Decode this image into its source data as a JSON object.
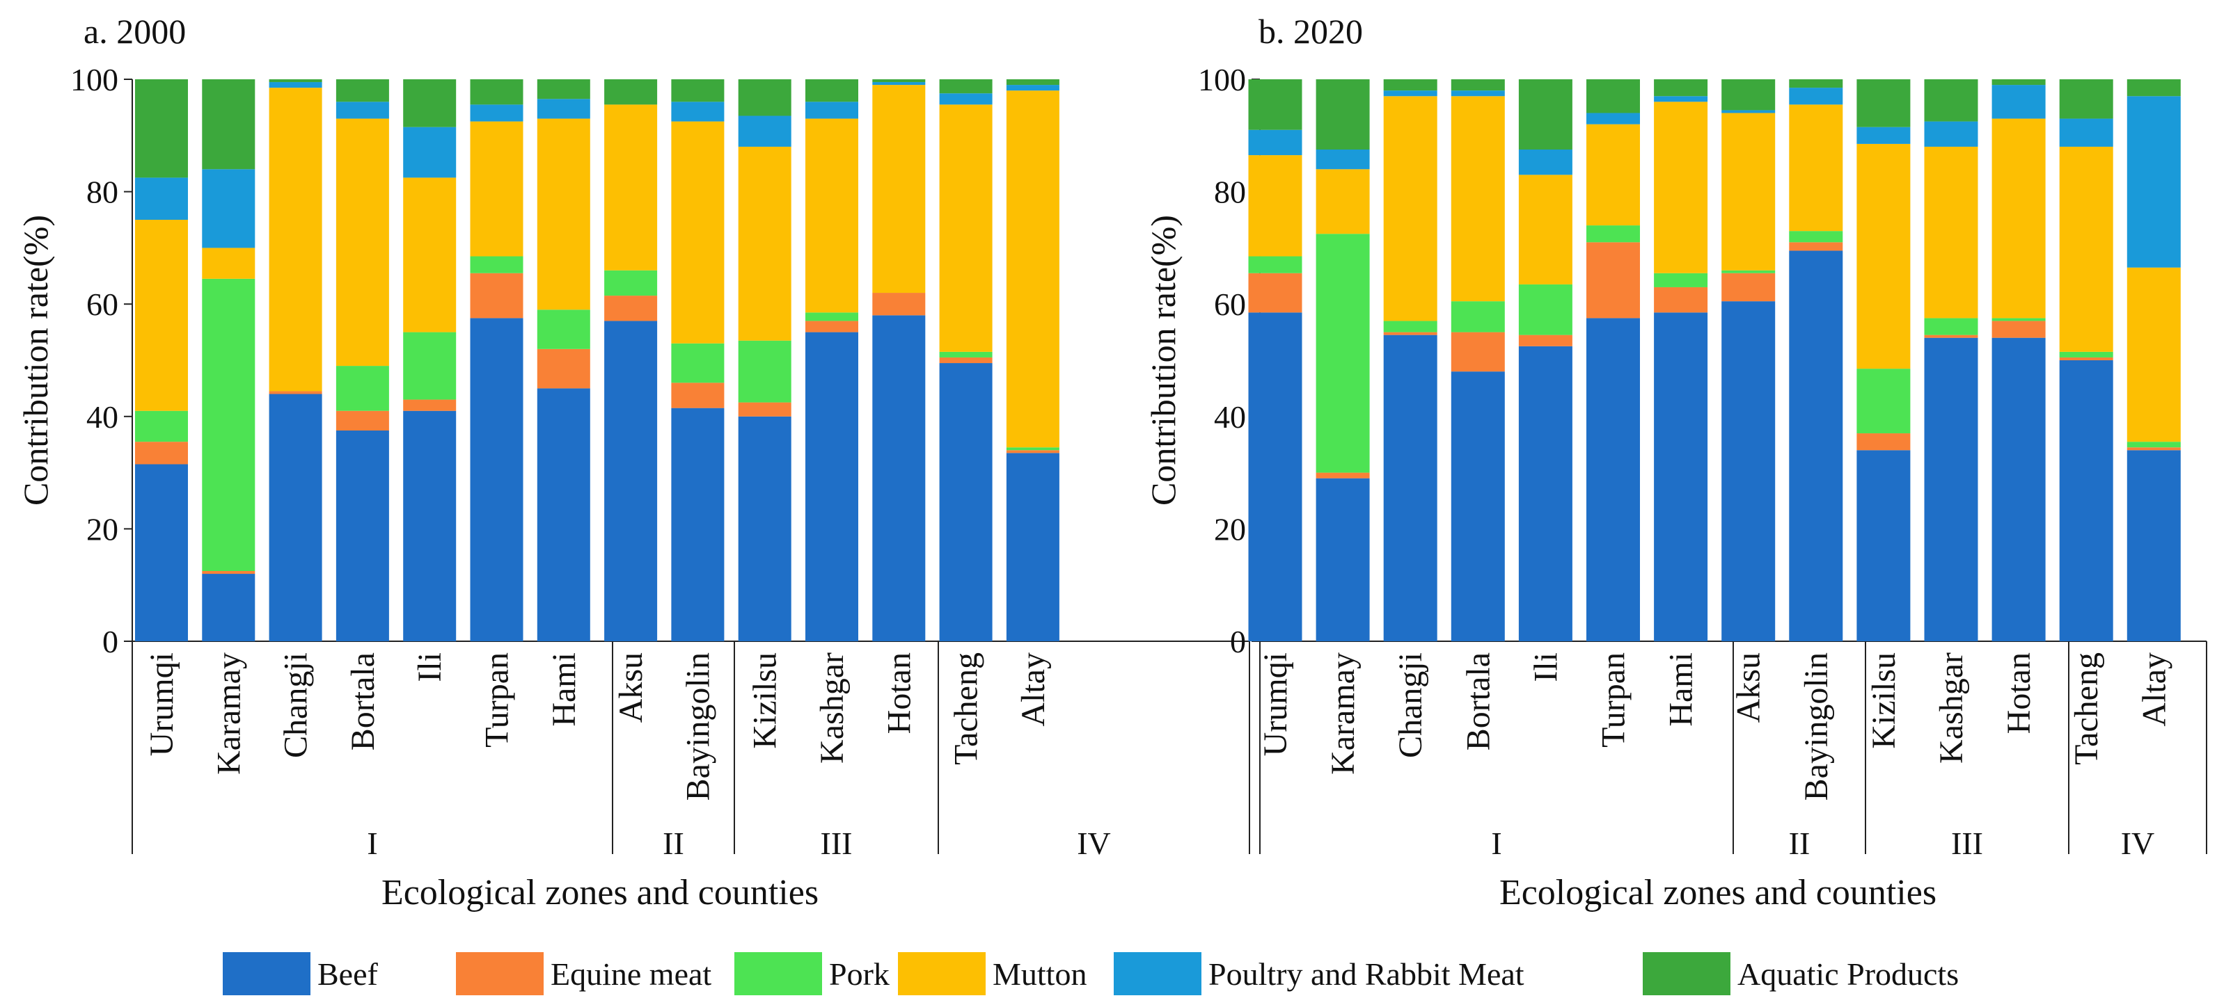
{
  "colors": {
    "Beef": "#1f6fc7",
    "Equine meat": "#f98136",
    "Pork": "#4de353",
    "Mutton": "#fdbf02",
    "Poultry and Rabbit Meat": "#1a9ad9",
    "Aquatic Products": "#3ca83c"
  },
  "legend": [
    "Beef",
    "Equine meat",
    "Pork",
    "Mutton",
    "Poultry and Rabbit Meat",
    "Aquatic Products"
  ],
  "chart_data": [
    {
      "type": "bar",
      "stacked": true,
      "title": "a. 2000",
      "xlabel": "Ecological zones and counties",
      "ylabel": "Contribution rate(%)",
      "ylim": [
        0,
        100
      ],
      "yticks": [
        "0",
        "20",
        "40",
        "60",
        "80",
        "100"
      ],
      "categories": [
        "Urumqi",
        "Karamay",
        "Changji",
        "Bortala",
        "Ili",
        "Turpan",
        "Hami",
        "Aksu",
        "Bayingolin",
        "Kizilsu",
        "Kashgar",
        "Hotan",
        "Tacheng",
        "Altay"
      ],
      "zones": [
        {
          "label": "I",
          "start": 0,
          "end": 6
        },
        {
          "label": "II",
          "start": 7,
          "end": 8
        },
        {
          "label": "III",
          "start": 9,
          "end": 11
        },
        {
          "label": "IV",
          "start": 12,
          "end": 13
        }
      ],
      "series": [
        {
          "name": "Beef",
          "values": [
            31.5,
            12,
            44,
            37.5,
            41,
            57.5,
            45,
            57,
            41.5,
            40,
            55,
            58,
            49.5,
            33.5
          ]
        },
        {
          "name": "Equine meat",
          "values": [
            4,
            0.5,
            0.5,
            3.5,
            2,
            8,
            7,
            4.5,
            4.5,
            2.5,
            2,
            4,
            1,
            0.5
          ]
        },
        {
          "name": "Pork",
          "values": [
            5.5,
            52,
            0,
            8,
            12,
            3,
            7,
            4.5,
            7,
            11,
            1.5,
            0,
            1,
            0.5
          ]
        },
        {
          "name": "Mutton",
          "values": [
            34,
            5.5,
            54,
            44,
            27.5,
            24,
            34,
            29.5,
            39.5,
            34.5,
            34.5,
            37,
            44,
            63.5
          ]
        },
        {
          "name": "Poultry and Rabbit Meat",
          "values": [
            7.5,
            14,
            1,
            3,
            9,
            3,
            3.5,
            0,
            3.5,
            5.5,
            3,
            0.5,
            2,
            1
          ]
        },
        {
          "name": "Aquatic Products",
          "values": [
            17.5,
            16,
            0.5,
            4,
            8.5,
            4.5,
            3.5,
            4.5,
            4,
            6.5,
            4,
            0.5,
            2.5,
            1
          ]
        }
      ]
    },
    {
      "type": "bar",
      "stacked": true,
      "title": "b. 2020",
      "xlabel": "Ecological zones and counties",
      "ylabel": "Contribution rate(%)",
      "ylim": [
        0,
        100
      ],
      "yticks": [
        "0",
        "20",
        "40",
        "60",
        "80",
        "100"
      ],
      "categories": [
        "Urumqi",
        "Karamay",
        "Changji",
        "Bortala",
        "Ili",
        "Turpan",
        "Hami",
        "Aksu",
        "Bayingolin",
        "Kizilsu",
        "Kashgar",
        "Hotan",
        "Tacheng",
        "Altay"
      ],
      "zones": [
        {
          "label": "I",
          "start": 0,
          "end": 6
        },
        {
          "label": "II",
          "start": 7,
          "end": 8
        },
        {
          "label": "III",
          "start": 9,
          "end": 11
        },
        {
          "label": "IV",
          "start": 12,
          "end": 13
        }
      ],
      "series": [
        {
          "name": "Beef",
          "values": [
            58.5,
            29,
            54.5,
            48,
            52.5,
            57.5,
            58.5,
            60.5,
            69.5,
            34,
            54,
            54,
            50,
            34
          ]
        },
        {
          "name": "Equine meat",
          "values": [
            7,
            1,
            0.5,
            7,
            2,
            13.5,
            4.5,
            5,
            1.5,
            3,
            0.5,
            3,
            0.5,
            0.5
          ]
        },
        {
          "name": "Pork",
          "values": [
            3,
            42.5,
            2,
            5.5,
            9,
            3,
            2.5,
            0.5,
            2,
            11.5,
            3,
            0.5,
            1,
            1
          ]
        },
        {
          "name": "Mutton",
          "values": [
            18,
            11.5,
            40,
            36.5,
            19.5,
            18,
            30.5,
            28,
            22.5,
            40,
            30.5,
            35.5,
            36.5,
            31
          ]
        },
        {
          "name": "Poultry and Rabbit Meat",
          "values": [
            4.5,
            3.5,
            1,
            1,
            4.5,
            2,
            1,
            0.5,
            3,
            3,
            4.5,
            6,
            5,
            30.5
          ]
        },
        {
          "name": "Aquatic Products",
          "values": [
            9,
            12.5,
            2,
            2,
            12.5,
            6,
            3,
            5.5,
            1.5,
            8.5,
            7.5,
            1,
            7,
            3
          ]
        }
      ]
    }
  ]
}
